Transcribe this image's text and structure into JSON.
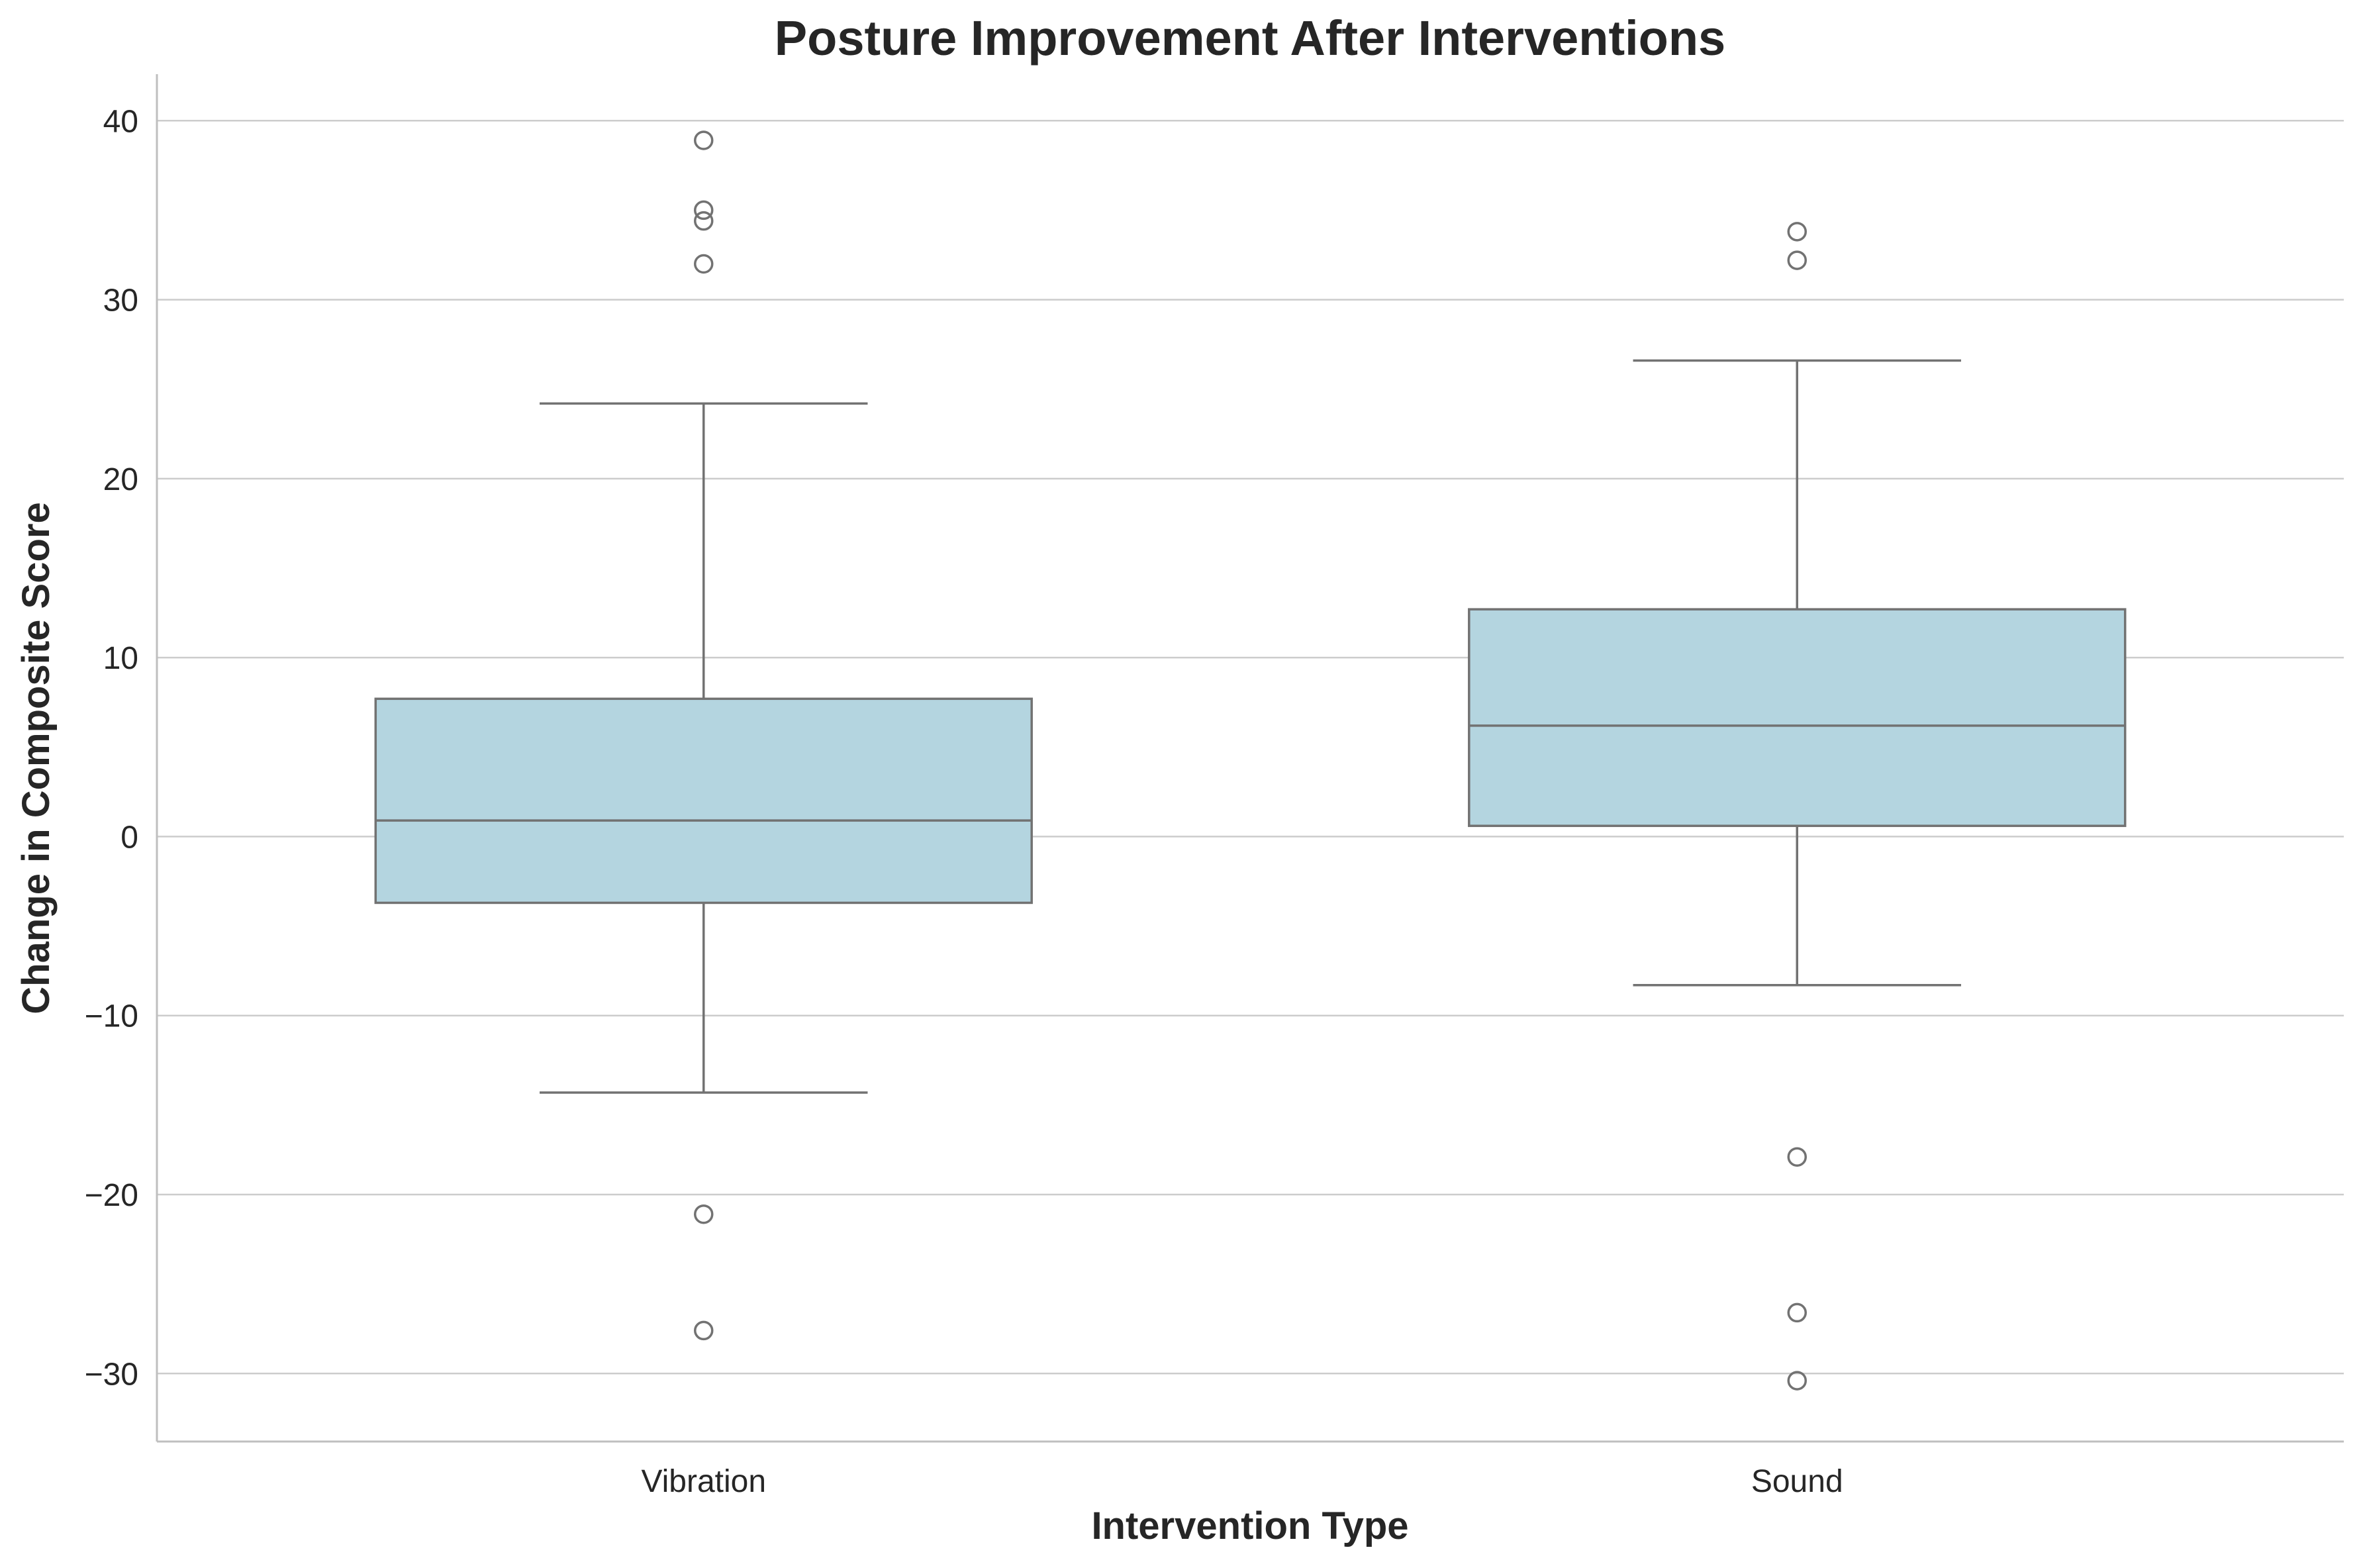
{
  "chart_data": {
    "type": "box",
    "title": "Posture Improvement After Interventions",
    "xlabel": "Intervention Type",
    "ylabel": "Change in Composite Score",
    "ylim": [
      -33.8,
      42.6
    ],
    "yticks": [
      -30,
      -20,
      -10,
      0,
      10,
      20,
      30,
      40
    ],
    "ytick_labels": [
      "−30",
      "−20",
      "−10",
      "0",
      "10",
      "20",
      "30",
      "40"
    ],
    "grid": true,
    "colors": {
      "box_fill": "#b4d5e0",
      "line": "#727272",
      "grid": "#cccccc",
      "spine": "#bfbfbf"
    },
    "categories": [
      "Vibration",
      "Sound"
    ],
    "boxes": [
      {
        "category": "Vibration",
        "whisker_low": -14.3,
        "q1": -3.7,
        "median": 0.9,
        "q3": 7.7,
        "whisker_high": 24.2,
        "outliers": [
          38.9,
          35.0,
          34.4,
          32.0,
          -21.1,
          -27.6
        ]
      },
      {
        "category": "Sound",
        "whisker_low": -8.3,
        "q1": 0.6,
        "median": 6.2,
        "q3": 12.7,
        "whisker_high": 26.6,
        "outliers": [
          33.8,
          32.2,
          -17.9,
          -26.6,
          -30.4
        ]
      }
    ]
  }
}
